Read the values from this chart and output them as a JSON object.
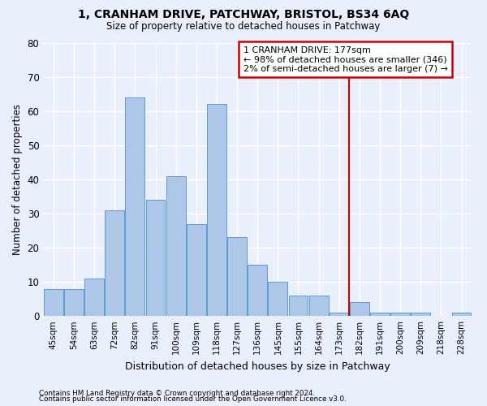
{
  "title1": "1, CRANHAM DRIVE, PATCHWAY, BRISTOL, BS34 6AQ",
  "title2": "Size of property relative to detached houses in Patchway",
  "xlabel": "Distribution of detached houses by size in Patchway",
  "ylabel": "Number of detached properties",
  "footnote1": "Contains HM Land Registry data © Crown copyright and database right 2024.",
  "footnote2": "Contains public sector information licensed under the Open Government Licence v3.0.",
  "bar_labels": [
    "45sqm",
    "54sqm",
    "63sqm",
    "72sqm",
    "82sqm",
    "91sqm",
    "100sqm",
    "109sqm",
    "118sqm",
    "127sqm",
    "136sqm",
    "145sqm",
    "155sqm",
    "164sqm",
    "173sqm",
    "182sqm",
    "191sqm",
    "200sqm",
    "209sqm",
    "218sqm",
    "228sqm"
  ],
  "bar_values": [
    8,
    8,
    11,
    31,
    64,
    34,
    41,
    27,
    62,
    23,
    15,
    10,
    6,
    6,
    1,
    4,
    1,
    1,
    1,
    0,
    1
  ],
  "bar_color": "#aec6e8",
  "bar_edge_color": "#5b9bd5",
  "background_color": "#eaf0fb",
  "grid_color": "#ffffff",
  "vline_x": 14.5,
  "vline_color": "#cc0000",
  "annotation_line1": "1 CRANHAM DRIVE: 177sqm",
  "annotation_line2": "← 98% of detached houses are smaller (346)",
  "annotation_line3": "2% of semi-detached houses are larger (7) →",
  "annotation_box_color": "#cc0000",
  "ylim": [
    0,
    80
  ],
  "yticks": [
    0,
    10,
    20,
    30,
    40,
    50,
    60,
    70,
    80
  ]
}
